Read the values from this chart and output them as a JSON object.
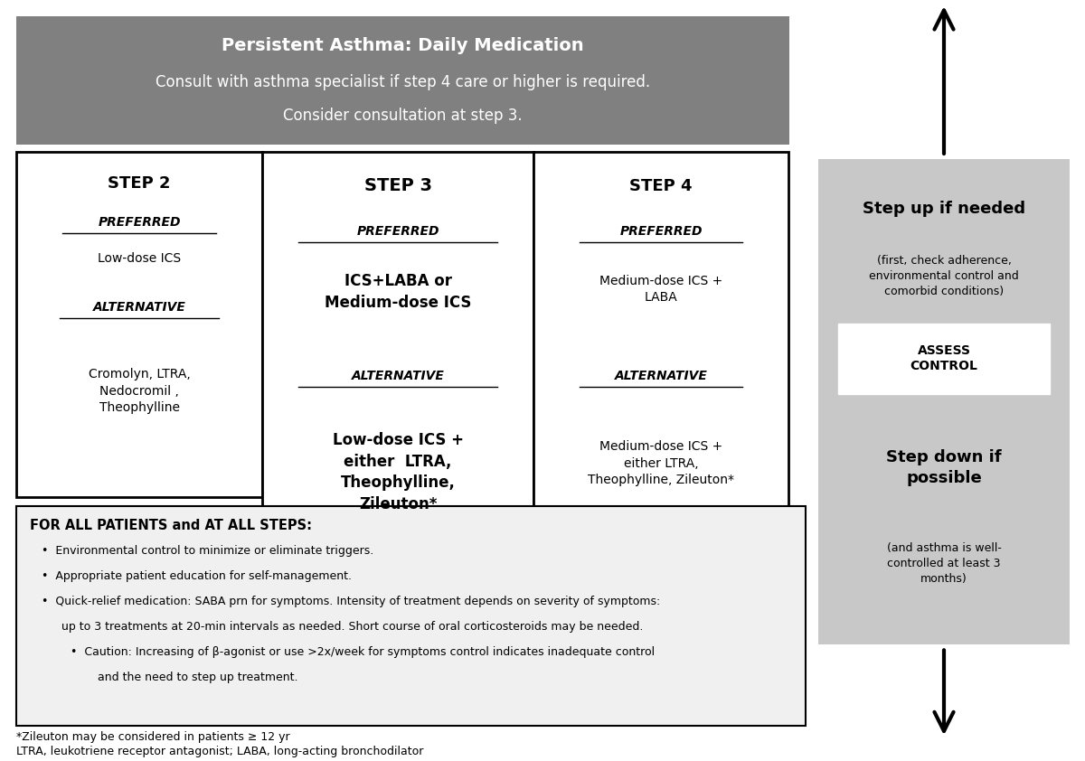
{
  "fig_width": 12.0,
  "fig_height": 8.42,
  "bg_color": "#ffffff",
  "header_bg": "#808080",
  "header_text_color": "#ffffff",
  "header_title": "Persistent Asthma: Daily Medication",
  "header_subtitle": "Consult with asthma specialist if step 4 care or higher is required.",
  "header_subtitle2": "Consider consultation at step 3.",
  "step2_title": "STEP 2",
  "step2_preferred_label": "PREFERRED",
  "step2_preferred_text": "Low-dose ICS",
  "step2_alt_label": "ALTERNATIVE",
  "step2_alt_text": "Cromolyn, LTRA,\nNedocromil ,\nTheophylline",
  "step3_title": "STEP 3",
  "step3_preferred_label": "PREFERRED",
  "step3_preferred_text": "ICS+LABA or\nMedium-dose ICS",
  "step3_alt_label": "ALTERNATIVE",
  "step3_alt_text": "Low-dose ICS +\neither  LTRA,\nTheophylline,\nZileuton*",
  "step4_title": "STEP 4",
  "step4_preferred_label": "PREFERRED",
  "step4_preferred_text": "Medium-dose ICS +\nLABA",
  "step4_alt_label": "ALTERNATIVE",
  "step4_alt_text": "Medium-dose ICS +\neither LTRA,\nTheophylline, Zileuton*",
  "right_panel_bg": "#c8c8c8",
  "right_stepup_text": "Step up if needed",
  "right_stepup_sub": "(first, check adherence,\nenvironmental control and\ncomorbid conditions)",
  "assess_control_text": "ASSESS\nCONTROL",
  "right_stepdown_text": "Step down if\npossible",
  "right_stepdown_sub": "(and asthma is well-\ncontrolled at least 3\nmonths)",
  "bottom_box_bg": "#f0f0f0",
  "bottom_title": "FOR ALL PATIENTS and AT ALL STEPS:",
  "bottom_bullet1": "Environmental control to minimize or eliminate triggers.",
  "bottom_bullet2": "Appropriate patient education for self-management.",
  "bottom_bullet3a": "Quick-relief medication: SABA prn for symptoms. Intensity of treatment depends on severity of symptoms:",
  "bottom_bullet3b": "up to 3 treatments at 20-min intervals as needed. Short course of oral corticosteroids may be needed.",
  "bottom_cautiona": "Caution: Increasing of β-agonist or use >2x/week for symptoms control indicates inadequate control",
  "bottom_cautionb": "and the need to step up treatment.",
  "footnote1": "*Zileuton may be considered in patients ≥ 12 yr",
  "footnote2": "LTRA, leukotriene receptor antagonist; LABA, long-acting bronchodilator"
}
